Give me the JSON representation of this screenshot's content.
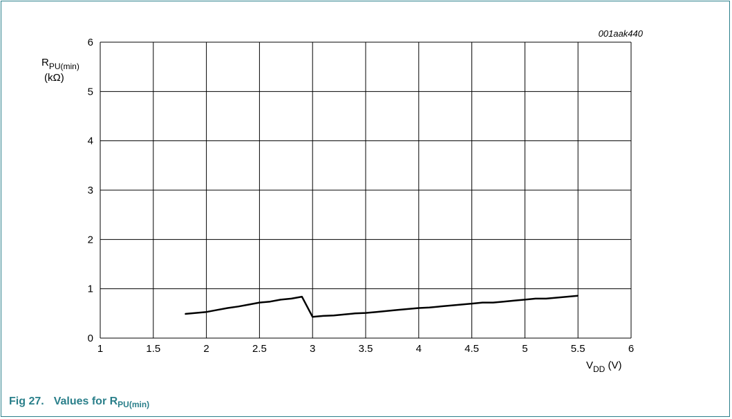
{
  "figure": {
    "code": "001aak440",
    "caption_number": "Fig 27.",
    "caption_text": "Values for R",
    "caption_sub": "PU(min)"
  },
  "chart_data": {
    "type": "line",
    "xlabel_main": "V",
    "xlabel_sub": "DD",
    "xlabel_unit": " (V)",
    "ylabel_main": "R",
    "ylabel_sub": "PU(min)",
    "ylabel_unit": "(kΩ)",
    "xlim": [
      1,
      6
    ],
    "ylim": [
      0,
      6
    ],
    "x_ticks": [
      "1",
      "1.5",
      "2",
      "2.5",
      "3",
      "3.5",
      "4",
      "4.5",
      "5",
      "5.5",
      "6"
    ],
    "y_ticks": [
      "0",
      "1",
      "2",
      "3",
      "4",
      "5",
      "6"
    ],
    "grid": true,
    "series": [
      {
        "x": [
          1.8,
          1.9,
          2.0,
          2.1,
          2.2,
          2.3,
          2.4,
          2.5,
          2.6,
          2.7,
          2.8,
          2.9,
          3.0,
          3.1,
          3.2,
          3.3,
          3.4,
          3.5,
          3.6,
          3.7,
          3.8,
          3.9,
          4.0,
          4.1,
          4.2,
          4.3,
          4.4,
          4.5,
          4.6,
          4.7,
          4.8,
          4.9,
          5.0,
          5.1,
          5.2,
          5.3,
          5.4,
          5.5
        ],
        "y": [
          0.49,
          0.51,
          0.53,
          0.57,
          0.61,
          0.64,
          0.68,
          0.72,
          0.74,
          0.78,
          0.8,
          0.84,
          0.43,
          0.45,
          0.46,
          0.48,
          0.5,
          0.51,
          0.53,
          0.55,
          0.57,
          0.59,
          0.61,
          0.62,
          0.64,
          0.66,
          0.68,
          0.7,
          0.72,
          0.72,
          0.74,
          0.76,
          0.78,
          0.8,
          0.8,
          0.82,
          0.84,
          0.86
        ]
      }
    ]
  }
}
